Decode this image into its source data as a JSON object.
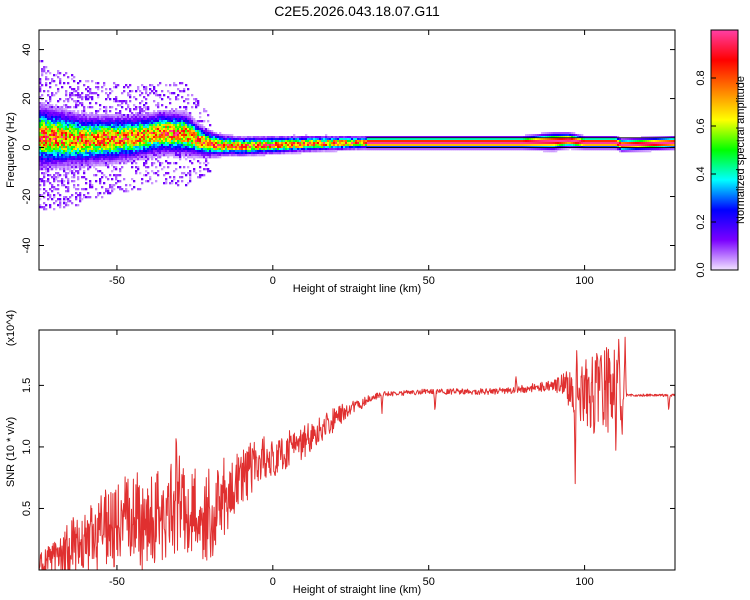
{
  "title": "C2E5.2026.043.18.07.G11",
  "chart_data": [
    {
      "type": "heatmap",
      "name": "spectrogram",
      "xlabel": "Height of straight line (km)",
      "ylabel": "Frequency (Hz)",
      "xlim": [
        -75,
        129
      ],
      "ylim": [
        -50,
        48
      ],
      "xticks": [
        -50,
        0,
        50,
        100
      ],
      "xtick_labels": [
        "-50",
        "0",
        "50",
        "100"
      ],
      "yticks": [
        -40,
        -20,
        0,
        20,
        40
      ],
      "ytick_labels": [
        "-40",
        "-20",
        "0",
        "20",
        "40"
      ],
      "centerline": {
        "x": [
          -75,
          -60,
          -45,
          -35,
          -28,
          -22,
          -18,
          -10,
          0,
          10,
          20,
          30,
          50,
          70,
          80,
          90,
          95,
          100,
          110,
          112,
          129
        ],
        "y": [
          4.5,
          3,
          4,
          6,
          5.5,
          2,
          1,
          0.5,
          1,
          1.5,
          1.8,
          2,
          2,
          2,
          2,
          2.5,
          3,
          2,
          2,
          1,
          2
        ]
      },
      "spread": {
        "x": [
          -75,
          -60,
          -40,
          -28,
          -22,
          -15,
          0,
          30,
          80,
          90,
          100,
          129
        ],
        "y": [
          9,
          7,
          6,
          6,
          4,
          2.8,
          2.5,
          1.8,
          1.8,
          2.5,
          1.8,
          1.8
        ]
      },
      "reference_band": {
        "y_low": 0,
        "y_high": 4,
        "x_start": 30,
        "x_end": 129
      },
      "colorbar": {
        "label": "Normalized spectral amplitude",
        "range": [
          0,
          1
        ],
        "ticks": [
          0.0,
          0.2,
          0.4,
          0.6,
          0.8
        ],
        "tick_labels": [
          "0.0",
          "0.2",
          "0.4",
          "0.6",
          "0.8"
        ],
        "colors": [
          "#f2e4ff",
          "#7a00ff",
          "#0000ff",
          "#00ffff",
          "#00ff00",
          "#ffff00",
          "#ff7f00",
          "#ff0000",
          "#ff3fa6"
        ]
      }
    },
    {
      "type": "line",
      "name": "snr",
      "xlabel": "Height of straight line (km)",
      "ylabel": "SNR (10 * v/v)",
      "exponent_label": "(x10^4)",
      "xlim": [
        -75,
        129
      ],
      "ylim": [
        0,
        1.95
      ],
      "xticks": [
        -50,
        0,
        50,
        100
      ],
      "xtick_labels": [
        "-50",
        "0",
        "50",
        "100"
      ],
      "yticks": [
        0.5,
        1.0,
        1.5
      ],
      "ytick_labels": [
        "0.5",
        "1.0",
        "1.5"
      ],
      "line_color": "#e03030",
      "envelope": {
        "x": [
          -75,
          -60,
          -50,
          -40,
          -30,
          -20,
          -10,
          0,
          10,
          20,
          30,
          35,
          50,
          70,
          80,
          90,
          95,
          100,
          110,
          113,
          129
        ],
        "y": [
          0.05,
          0.3,
          0.45,
          0.5,
          0.55,
          0.5,
          0.8,
          0.95,
          1.05,
          1.25,
          1.38,
          1.43,
          1.45,
          1.45,
          1.47,
          1.5,
          1.48,
          1.45,
          1.45,
          1.42,
          1.42
        ]
      },
      "noise": {
        "x": [
          -75,
          -60,
          -40,
          -20,
          0,
          15,
          25,
          35,
          70,
          90,
          95,
          100,
          112,
          113,
          129
        ],
        "y": [
          0.08,
          0.25,
          0.4,
          0.35,
          0.15,
          0.12,
          0.05,
          0.02,
          0.025,
          0.04,
          0.15,
          0.3,
          0.4,
          0.01,
          0.01
        ]
      },
      "spikes": [
        {
          "x": 97,
          "y": 0.67
        },
        {
          "x": 97.5,
          "y": 1.82
        },
        {
          "x": 103,
          "y": 1.03
        },
        {
          "x": 104,
          "y": 1.78
        },
        {
          "x": 106,
          "y": 1.12
        },
        {
          "x": 108,
          "y": 1.75
        },
        {
          "x": 110,
          "y": 0.96
        },
        {
          "x": 111,
          "y": 1.95
        },
        {
          "x": 112,
          "y": 1.05
        },
        {
          "x": 113,
          "y": 1.9
        },
        {
          "x": 35,
          "y": 1.27
        },
        {
          "x": 52,
          "y": 1.28
        },
        {
          "x": 78,
          "y": 1.57
        },
        {
          "x": 127,
          "y": 1.29
        },
        {
          "x": -30,
          "y": 1.0
        },
        {
          "x": -20,
          "y": 0.08
        },
        {
          "x": -38,
          "y": 0.02
        },
        {
          "x": -31,
          "y": 1.22
        }
      ]
    }
  ]
}
